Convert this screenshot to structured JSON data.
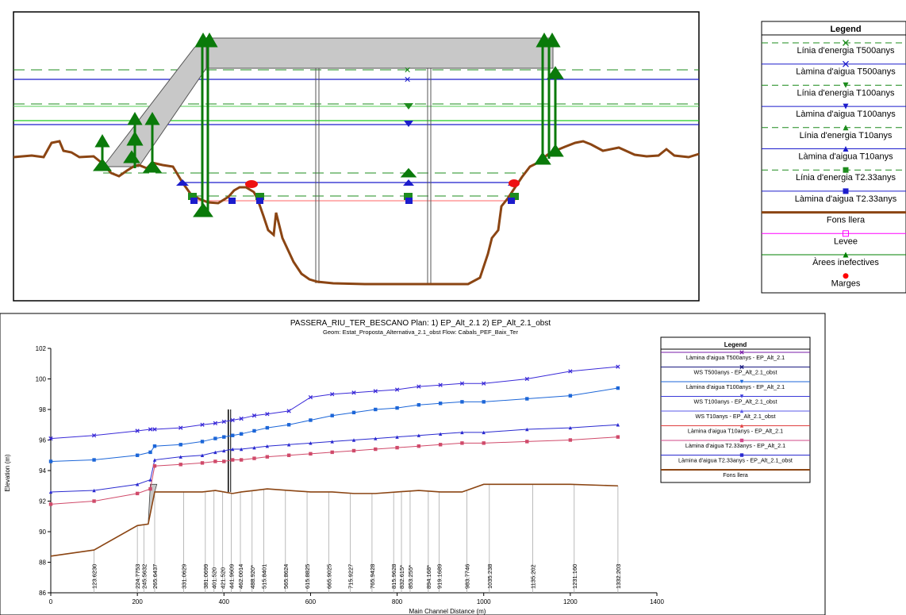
{
  "cross_section": {
    "legend": {
      "title": "Legend",
      "items": [
        {
          "label": "Línia d'energia T500anys",
          "color": "#1e8c1e",
          "style": "dash",
          "marker": "x"
        },
        {
          "label": "Làmina d'aigua T500anys",
          "color": "#1c1ccc",
          "style": "solid",
          "marker": "x"
        },
        {
          "label": "Línia d'energia T100anys",
          "color": "#1e8c1e",
          "style": "dash",
          "marker": "tri-down"
        },
        {
          "label": "Làmina d'aigua T100anys",
          "color": "#1c1ccc",
          "style": "solid",
          "marker": "tri-down"
        },
        {
          "label": "Línia d'energia T10anys",
          "color": "#1e8c1e",
          "style": "dash",
          "marker": "tri-up"
        },
        {
          "label": "Làmina d'aigua T10anys",
          "color": "#1c1ccc",
          "style": "solid",
          "marker": "tri-up"
        },
        {
          "label": "Línia d'energia T2.33anys",
          "color": "#1e8c1e",
          "style": "dash",
          "marker": "square"
        },
        {
          "label": "Làmina d'aigua T2.33anys",
          "color": "#1c1ccc",
          "style": "solid",
          "marker": "square"
        },
        {
          "label": "Fons llera",
          "color": "#8b4513",
          "style": "thick",
          "marker": "none"
        },
        {
          "label": "Levee",
          "color": "#ff00ff",
          "style": "solid",
          "marker": "square-open"
        },
        {
          "label": "Àrees inefectives",
          "color": "#008000",
          "style": "solid",
          "marker": "tri-up"
        },
        {
          "label": "Marges",
          "color": "#ff0000",
          "style": "none",
          "marker": "dot"
        }
      ]
    }
  },
  "chart_data": {
    "type": "line",
    "title": "PASSERA_RIU_TER_BESCANO     Plan:    1) EP_Alt_2.1    2) EP_Alt_2.1_obst",
    "subtitle": "Geom: Estat_Proposta_Alternativa_2.1_obst    Flow: Cabals_PEF_Baix_Ter",
    "xlabel": "Main Channel Distance (m)",
    "ylabel": "Elevation (m)",
    "xlim": [
      0,
      1400
    ],
    "ylim": [
      86,
      102
    ],
    "x_ticks": [
      0,
      200,
      400,
      600,
      800,
      1000,
      1200,
      1400
    ],
    "y_ticks": [
      86,
      88,
      90,
      92,
      94,
      96,
      98,
      100,
      102
    ],
    "legend": {
      "title": "Legend",
      "items": [
        {
          "label": "Làmina d'aigua  T500anys - EP_Alt_2.1",
          "color": "#7a1ea8",
          "marker": "x"
        },
        {
          "label": "WS  T500anys - EP_Alt_2.1_obst",
          "color": "#1a1a80",
          "marker": "x"
        },
        {
          "label": "Làmina d'aigua  T100anys - EP_Alt_2.1",
          "color": "#1c66d8",
          "marker": "tri-down"
        },
        {
          "label": "WS  T100anys - EP_Alt_2.1_obst",
          "color": "#3a3ad8",
          "marker": "tri-down"
        },
        {
          "label": "WS  T10anys - EP_Alt_2.1_obst",
          "color": "#5a5ae8",
          "marker": "tri-up"
        },
        {
          "label": "Làmina d'aigua  T10anys - EP_Alt_2.1",
          "color": "#e04040",
          "marker": "tri-up"
        },
        {
          "label": "Làmina d'aigua  T2.33anys - EP_Alt_2.1",
          "color": "#d04a8a",
          "marker": "square"
        },
        {
          "label": "Làmina d'aigua  T2.33anys - EP_Alt_2.1_obst",
          "color": "#2a2ad0",
          "marker": "square"
        },
        {
          "label": "Fons llera",
          "color": "#8b4513",
          "marker": "none"
        }
      ]
    },
    "series": [
      {
        "name": "Làmina d'aigua  T500anys - EP_Alt_2.1",
        "color": "#3a2ad8",
        "marker": "x",
        "x": [
          0,
          100,
          200,
          230,
          240,
          300,
          350,
          380,
          400,
          420,
          440,
          470,
          500,
          550,
          600,
          650,
          700,
          750,
          800,
          850,
          900,
          950,
          1000,
          1100,
          1200,
          1310
        ],
        "y": [
          96.1,
          96.3,
          96.6,
          96.7,
          96.7,
          96.8,
          97.0,
          97.1,
          97.2,
          97.3,
          97.4,
          97.6,
          97.7,
          97.9,
          98.8,
          99.0,
          99.1,
          99.2,
          99.3,
          99.5,
          99.6,
          99.7,
          99.7,
          100.0,
          100.5,
          100.8
        ]
      },
      {
        "name": "Làmina d'aigua  T100anys - EP_Alt_2.1",
        "color": "#1c66d8",
        "marker": "square",
        "x": [
          0,
          100,
          200,
          230,
          240,
          300,
          350,
          380,
          400,
          420,
          440,
          470,
          500,
          550,
          600,
          650,
          700,
          750,
          800,
          850,
          900,
          950,
          1000,
          1100,
          1200,
          1310
        ],
        "y": [
          94.6,
          94.7,
          95.0,
          95.2,
          95.6,
          95.7,
          95.9,
          96.1,
          96.2,
          96.3,
          96.4,
          96.6,
          96.8,
          97.0,
          97.3,
          97.6,
          97.8,
          98.0,
          98.1,
          98.3,
          98.4,
          98.5,
          98.5,
          98.7,
          98.9,
          99.4
        ]
      },
      {
        "name": "Làmina d'aigua  T10anys - EP_Alt_2.1",
        "color": "#2a2ad0",
        "marker": "tri-up",
        "x": [
          0,
          100,
          200,
          230,
          240,
          300,
          350,
          380,
          400,
          420,
          440,
          470,
          500,
          550,
          600,
          650,
          700,
          750,
          800,
          850,
          900,
          950,
          1000,
          1100,
          1200,
          1310
        ],
        "y": [
          92.6,
          92.7,
          93.1,
          93.4,
          94.7,
          94.9,
          95.0,
          95.2,
          95.3,
          95.4,
          95.4,
          95.5,
          95.6,
          95.7,
          95.8,
          95.9,
          96.0,
          96.1,
          96.2,
          96.3,
          96.4,
          96.5,
          96.5,
          96.7,
          96.8,
          97.0
        ]
      },
      {
        "name": "Làmina d'aigua  T2.33anys - EP_Alt_2.1",
        "color": "#d04a6a",
        "marker": "square",
        "x": [
          0,
          100,
          200,
          230,
          240,
          300,
          350,
          380,
          400,
          420,
          440,
          470,
          500,
          550,
          600,
          650,
          700,
          750,
          800,
          850,
          900,
          950,
          1000,
          1100,
          1200,
          1310
        ],
        "y": [
          91.8,
          92.0,
          92.5,
          92.8,
          94.3,
          94.4,
          94.5,
          94.6,
          94.6,
          94.7,
          94.7,
          94.8,
          94.9,
          95.0,
          95.1,
          95.2,
          95.3,
          95.4,
          95.5,
          95.6,
          95.7,
          95.8,
          95.8,
          95.9,
          96.0,
          96.2
        ]
      },
      {
        "name": "Fons llera",
        "color": "#8b4513",
        "marker": "none",
        "x": [
          0,
          100,
          200,
          225,
          240,
          300,
          350,
          380,
          400,
          420,
          440,
          470,
          500,
          550,
          600,
          650,
          700,
          750,
          800,
          850,
          900,
          950,
          1000,
          1100,
          1200,
          1310
        ],
        "y": [
          88.4,
          88.8,
          90.4,
          90.5,
          92.6,
          92.6,
          92.6,
          92.7,
          92.6,
          92.5,
          92.6,
          92.7,
          92.8,
          92.7,
          92.6,
          92.6,
          92.5,
          92.5,
          92.6,
          92.7,
          92.6,
          92.6,
          93.1,
          93.1,
          93.1,
          93.0
        ]
      }
    ],
    "stations": [
      {
        "x": 100,
        "label": "123.6230"
      },
      {
        "x": 200,
        "label": "224.7753"
      },
      {
        "x": 215,
        "label": "245.5632"
      },
      {
        "x": 240,
        "label": "265.6437"
      },
      {
        "x": 307,
        "label": "331.0629"
      },
      {
        "x": 357,
        "label": "381.0699"
      },
      {
        "x": 377,
        "label": "401.520"
      },
      {
        "x": 397,
        "label": "421.520"
      },
      {
        "x": 417,
        "label": "441.9609"
      },
      {
        "x": 438,
        "label": "462.0014"
      },
      {
        "x": 465,
        "label": "488.920*"
      },
      {
        "x": 492,
        "label": "515.8401"
      },
      {
        "x": 542,
        "label": "565.8624"
      },
      {
        "x": 592,
        "label": "615.8825"
      },
      {
        "x": 642,
        "label": "665.9025"
      },
      {
        "x": 692,
        "label": "715.9227"
      },
      {
        "x": 742,
        "label": "765.9428"
      },
      {
        "x": 792,
        "label": "815.9628"
      },
      {
        "x": 810,
        "label": "832.615*"
      },
      {
        "x": 830,
        "label": "853.255*"
      },
      {
        "x": 872,
        "label": "894.168*"
      },
      {
        "x": 897,
        "label": "919.1689"
      },
      {
        "x": 961,
        "label": "983.7746"
      },
      {
        "x": 1013,
        "label": "1035.238"
      },
      {
        "x": 1113,
        "label": "1135.202"
      },
      {
        "x": 1209,
        "label": "1231.160"
      },
      {
        "x": 1310,
        "label": "1332.203"
      }
    ],
    "structure": {
      "x": 410,
      "top": 98.0,
      "bottom": 92.6
    }
  }
}
